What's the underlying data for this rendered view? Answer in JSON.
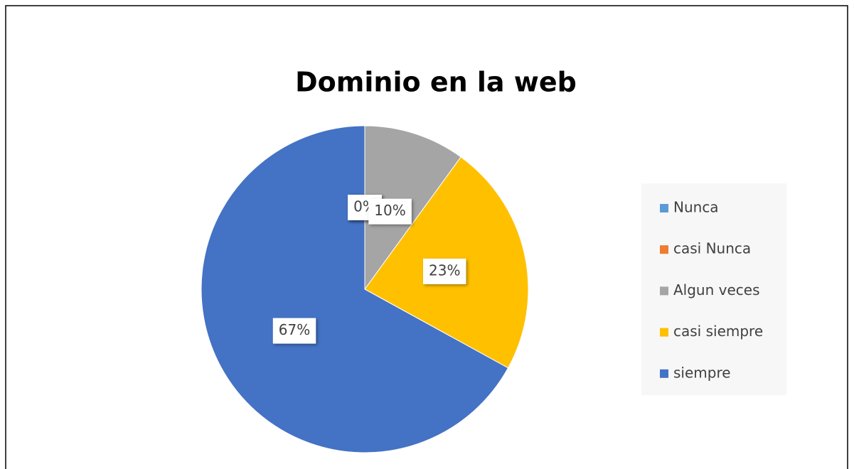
{
  "chart_data": {
    "type": "pie",
    "title": "Dominio en la web",
    "categories": [
      "Nunca",
      "casi Nunca",
      "Algun veces",
      "casi siempre",
      "siempre"
    ],
    "values": [
      0,
      0,
      10,
      23,
      67
    ],
    "value_labels": [
      "0%",
      "0%",
      "10%",
      "23%",
      "67%"
    ],
    "colors": [
      "#5b9bd5",
      "#ed7d31",
      "#a5a5a5",
      "#ffc000",
      "#4472c4"
    ],
    "legend": "right"
  }
}
